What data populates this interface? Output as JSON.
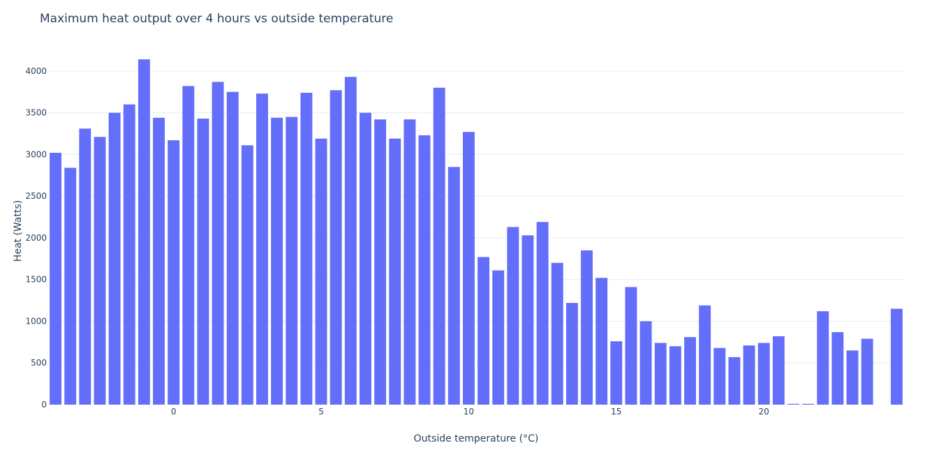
{
  "chart_data": {
    "type": "bar",
    "title": "Maximum heat output over 4 hours vs outside temperature",
    "xlabel": "Outside temperature (°C)",
    "ylabel": "Heat (Watts)",
    "xlim": [
      -4.25,
      24.75
    ],
    "ylim": [
      0,
      4350
    ],
    "x_ticks": [
      0,
      5,
      10,
      15,
      20
    ],
    "y_ticks": [
      0,
      500,
      1000,
      1500,
      2000,
      2500,
      3000,
      3500,
      4000
    ],
    "grid": true,
    "bar_color": "#636efa",
    "x": [
      -4,
      -3.5,
      -3,
      -2.5,
      -2,
      -1.5,
      -1,
      -0.5,
      0,
      0.5,
      1,
      1.5,
      2,
      2.5,
      3,
      3.5,
      4,
      4.5,
      5,
      5.5,
      6,
      6.5,
      7,
      7.5,
      8,
      8.5,
      9,
      9.5,
      10,
      10.5,
      11,
      11.5,
      12,
      12.5,
      13,
      13.5,
      14,
      14.5,
      15,
      15.5,
      16,
      16.5,
      17,
      17.5,
      18,
      18.5,
      19,
      19.5,
      20,
      20.5,
      21,
      21.5,
      22,
      22.5,
      23,
      23.5,
      24,
      24.5
    ],
    "values": [
      3020,
      2840,
      3310,
      3210,
      3500,
      3600,
      4140,
      3440,
      3170,
      3820,
      3430,
      3870,
      3750,
      3110,
      3730,
      3440,
      3450,
      3740,
      3190,
      3770,
      3930,
      3500,
      3420,
      3190,
      3420,
      3230,
      3800,
      2850,
      3270,
      1770,
      1610,
      2130,
      2030,
      2190,
      1700,
      1220,
      1850,
      1520,
      760,
      1410,
      1000,
      740,
      700,
      810,
      1190,
      680,
      570,
      710,
      740,
      820,
      10,
      10,
      1120,
      870,
      650,
      790,
      0,
      1150
    ]
  }
}
